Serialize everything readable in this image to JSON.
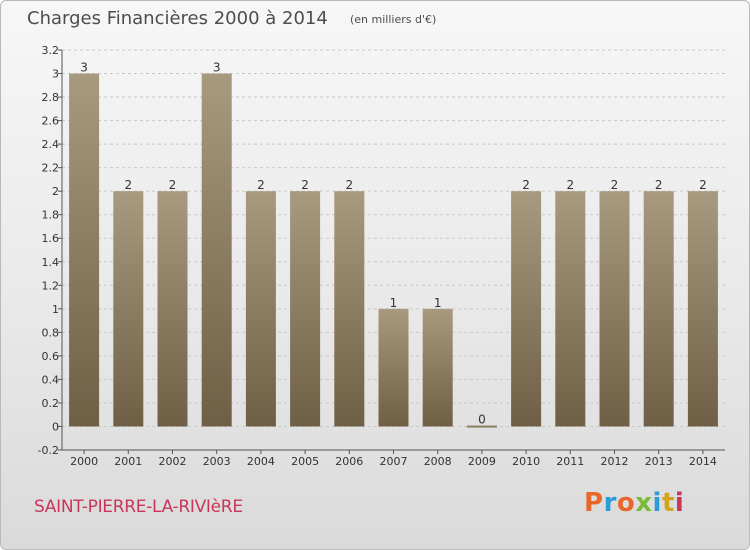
{
  "header": {
    "title": "Charges Financières 2000 à 2014",
    "unit": "(en milliers d'€)"
  },
  "footer": {
    "commune": "SAINT-PIERRE-LA-RIVIèRE",
    "brand": "Proxiti",
    "brand_colors": [
      "#e9672b",
      "#2d9bd7",
      "#e9672b",
      "#7bb93a",
      "#2d9bd7",
      "#d6a31e",
      "#c9365a"
    ]
  },
  "colors": {
    "bar_top": "#a89a7e",
    "bar_bottom": "#6e5f45",
    "grid": "#c8c8c8",
    "axis": "#555555"
  },
  "chart_data": {
    "type": "bar",
    "title": "Charges Financières 2000 à 2014",
    "subtitle": "(en milliers d'€)",
    "categories": [
      "2000",
      "2001",
      "2002",
      "2003",
      "2004",
      "2005",
      "2006",
      "2007",
      "2008",
      "2009",
      "2010",
      "2011",
      "2012",
      "2013",
      "2014"
    ],
    "values": [
      3,
      2,
      2,
      3,
      2,
      2,
      2,
      1,
      1,
      0,
      2,
      2,
      2,
      2,
      2
    ],
    "data_labels": [
      "3",
      "2",
      "2",
      "3",
      "2",
      "2",
      "2",
      "1",
      "1",
      "0",
      "2",
      "2",
      "2",
      "2",
      "2"
    ],
    "ylim": [
      -0.2,
      3.2
    ],
    "yticks": [
      -0.2,
      0,
      0.2,
      0.4,
      0.6,
      0.8,
      1,
      1.2,
      1.4,
      1.6,
      1.8,
      2,
      2.2,
      2.4,
      2.6,
      2.8,
      3,
      3.2
    ],
    "ytick_labels": [
      "-0.2",
      "0",
      "0.2",
      "0.4",
      "0.6",
      "0.8",
      "1",
      "1.2",
      "1.4",
      "1.6",
      "1.8",
      "2",
      "2.2",
      "2.4",
      "2.6",
      "2.8",
      "3",
      "3.2"
    ],
    "grid": "horizontal dashed",
    "legend": "none"
  }
}
